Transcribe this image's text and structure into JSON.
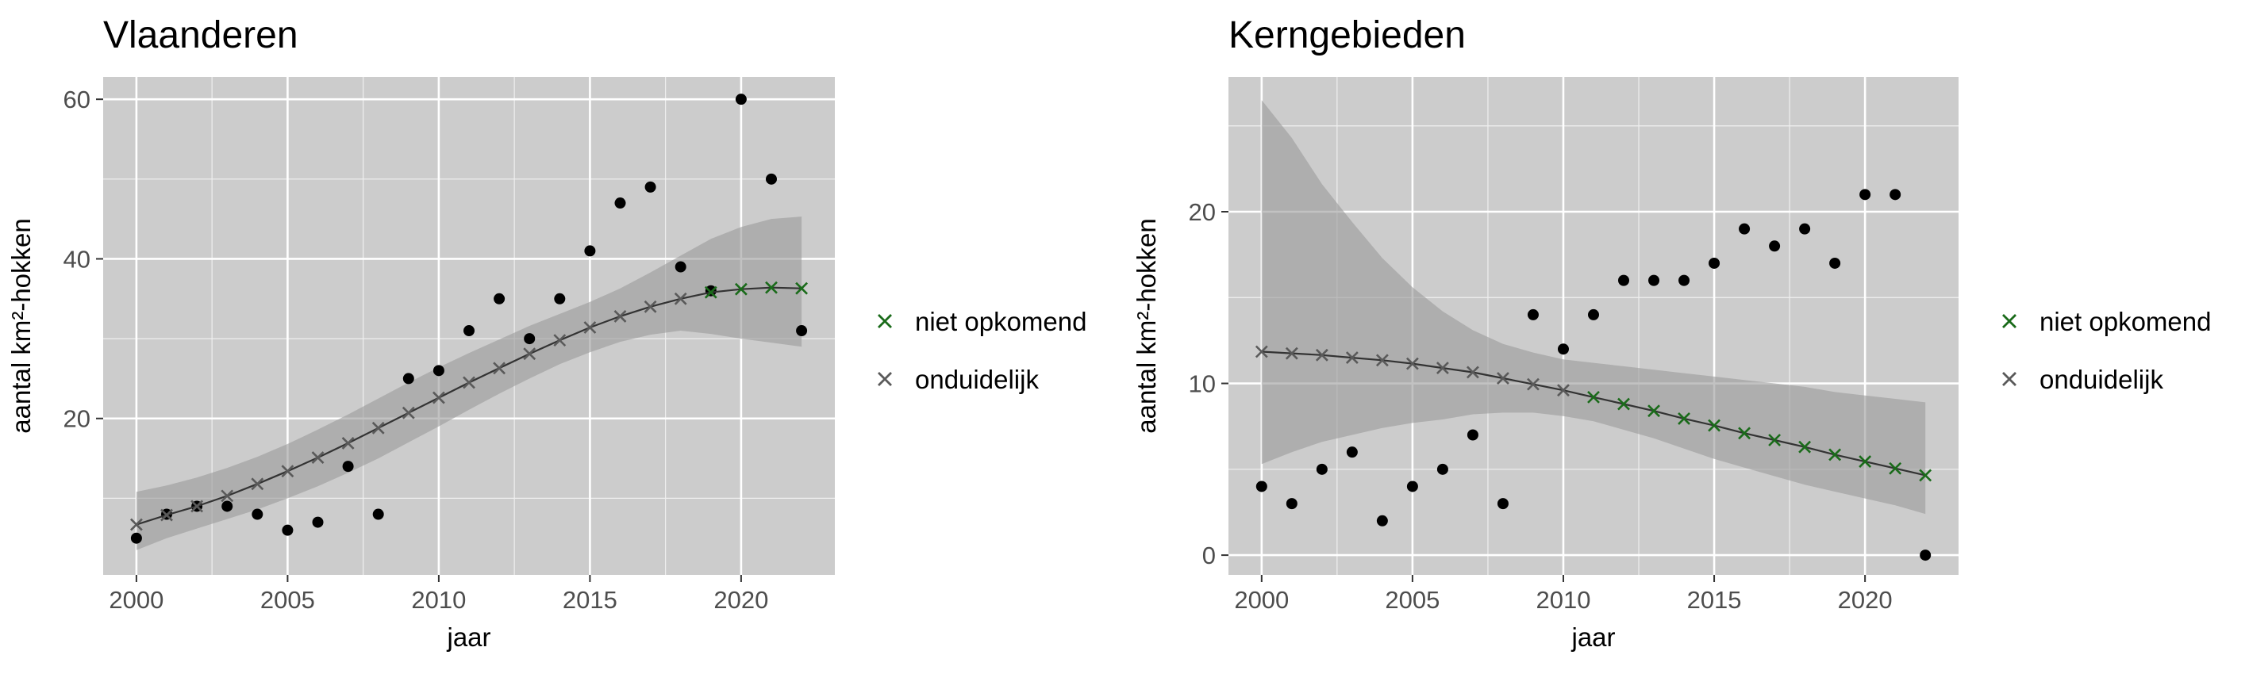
{
  "chart_data": [
    {
      "type": "scatter",
      "title": "Vlaanderen",
      "xlabel": "jaar",
      "ylabel": "aantal km²-hokken",
      "xlim": [
        1998.9,
        2023.1
      ],
      "ylim": [
        0.4,
        62.8
      ],
      "x_ticks": [
        2000,
        2005,
        2010,
        2015,
        2020
      ],
      "y_ticks": [
        20,
        40,
        60
      ],
      "grid": true,
      "legend_position": "right",
      "observed": {
        "x": [
          2000,
          2001,
          2002,
          2003,
          2004,
          2005,
          2006,
          2007,
          2008,
          2009,
          2010,
          2011,
          2012,
          2013,
          2014,
          2015,
          2016,
          2017,
          2018,
          2019,
          2020,
          2021,
          2022
        ],
        "y": [
          5,
          8,
          9,
          9,
          8,
          6,
          7,
          14,
          8,
          25,
          26,
          31,
          35,
          30,
          35,
          41,
          47,
          49,
          39,
          36,
          60,
          50,
          31
        ]
      },
      "fit": {
        "x": [
          2000,
          2001,
          2002,
          2003,
          2004,
          2005,
          2006,
          2007,
          2008,
          2009,
          2010,
          2011,
          2012,
          2013,
          2014,
          2015,
          2016,
          2017,
          2018,
          2019,
          2020,
          2021,
          2022
        ],
        "y": [
          6.7,
          7.9,
          9.0,
          10.3,
          11.8,
          13.4,
          15.1,
          16.9,
          18.8,
          20.7,
          22.6,
          24.5,
          26.3,
          28.1,
          29.8,
          31.4,
          32.8,
          34.0,
          35.0,
          35.8,
          36.2,
          36.4,
          36.3
        ],
        "lower": [
          3.5,
          5.0,
          6.2,
          7.4,
          8.6,
          10.0,
          11.5,
          13.2,
          15.0,
          17.0,
          19.0,
          21.1,
          23.1,
          25.0,
          26.8,
          28.3,
          29.6,
          30.5,
          31.0,
          30.6,
          30.0,
          29.5,
          29.0
        ],
        "upper": [
          10.8,
          11.6,
          12.6,
          13.8,
          15.2,
          16.8,
          18.6,
          20.5,
          22.5,
          24.5,
          26.4,
          28.2,
          29.9,
          31.6,
          33.1,
          34.6,
          36.3,
          38.3,
          40.4,
          42.5,
          44.0,
          45.0,
          45.3
        ],
        "status": [
          "onduidelijk",
          "onduidelijk",
          "onduidelijk",
          "onduidelijk",
          "onduidelijk",
          "onduidelijk",
          "onduidelijk",
          "onduidelijk",
          "onduidelijk",
          "onduidelijk",
          "onduidelijk",
          "onduidelijk",
          "onduidelijk",
          "onduidelijk",
          "onduidelijk",
          "onduidelijk",
          "onduidelijk",
          "onduidelijk",
          "onduidelijk",
          "niet opkomend",
          "niet opkomend",
          "niet opkomend",
          "niet opkomend"
        ]
      }
    },
    {
      "type": "scatter",
      "title": "Kerngebieden",
      "xlabel": "jaar",
      "ylabel": "aantal km²-hokken",
      "xlim": [
        1998.9,
        2023.1
      ],
      "ylim": [
        -1.15,
        27.85
      ],
      "x_ticks": [
        2000,
        2005,
        2010,
        2015,
        2020
      ],
      "y_ticks": [
        0,
        10,
        20
      ],
      "grid": true,
      "legend_position": "right",
      "observed": {
        "x": [
          2000,
          2001,
          2002,
          2003,
          2004,
          2005,
          2006,
          2007,
          2008,
          2009,
          2010,
          2011,
          2012,
          2013,
          2014,
          2015,
          2016,
          2017,
          2018,
          2019,
          2020,
          2021,
          2022
        ],
        "y": [
          4,
          3,
          5,
          6,
          2,
          4,
          5,
          7,
          3,
          14,
          12,
          14,
          16,
          16,
          16,
          17,
          19,
          18,
          19,
          17,
          21,
          21,
          0
        ]
      },
      "fit": {
        "x": [
          2000,
          2001,
          2002,
          2003,
          2004,
          2005,
          2006,
          2007,
          2008,
          2009,
          2010,
          2011,
          2012,
          2013,
          2014,
          2015,
          2016,
          2017,
          2018,
          2019,
          2020,
          2021,
          2022
        ],
        "y": [
          11.85,
          11.75,
          11.65,
          11.5,
          11.35,
          11.15,
          10.9,
          10.65,
          10.3,
          9.95,
          9.6,
          9.2,
          8.8,
          8.4,
          7.95,
          7.55,
          7.1,
          6.7,
          6.3,
          5.85,
          5.45,
          5.05,
          4.65
        ],
        "lower": [
          5.3,
          6.0,
          6.6,
          7.0,
          7.4,
          7.7,
          7.9,
          8.2,
          8.3,
          8.3,
          8.1,
          7.8,
          7.3,
          6.8,
          6.2,
          5.6,
          5.1,
          4.6,
          4.1,
          3.7,
          3.3,
          2.9,
          2.4
        ],
        "upper": [
          26.5,
          24.3,
          21.6,
          19.4,
          17.3,
          15.6,
          14.2,
          13.1,
          12.3,
          11.8,
          11.4,
          11.2,
          11.0,
          10.8,
          10.6,
          10.4,
          10.2,
          10.0,
          9.8,
          9.5,
          9.3,
          9.1,
          8.9
        ],
        "status": [
          "onduidelijk",
          "onduidelijk",
          "onduidelijk",
          "onduidelijk",
          "onduidelijk",
          "onduidelijk",
          "onduidelijk",
          "onduidelijk",
          "onduidelijk",
          "onduidelijk",
          "onduidelijk",
          "niet opkomend",
          "niet opkomend",
          "niet opkomend",
          "niet opkomend",
          "niet opkomend",
          "niet opkomend",
          "niet opkomend",
          "niet opkomend",
          "niet opkomend",
          "niet opkomend",
          "niet opkomend",
          "niet opkomend"
        ]
      }
    }
  ],
  "legend": [
    {
      "label": "niet opkomend",
      "color": "#1a6b1a"
    },
    {
      "label": "onduidelijk",
      "color": "#5a5a5a"
    }
  ],
  "colors": {
    "panel_background": "#cccccc",
    "grid": "#ffffff",
    "ribbon": "#999999",
    "fit_line": "#333333",
    "points": "#000000"
  }
}
